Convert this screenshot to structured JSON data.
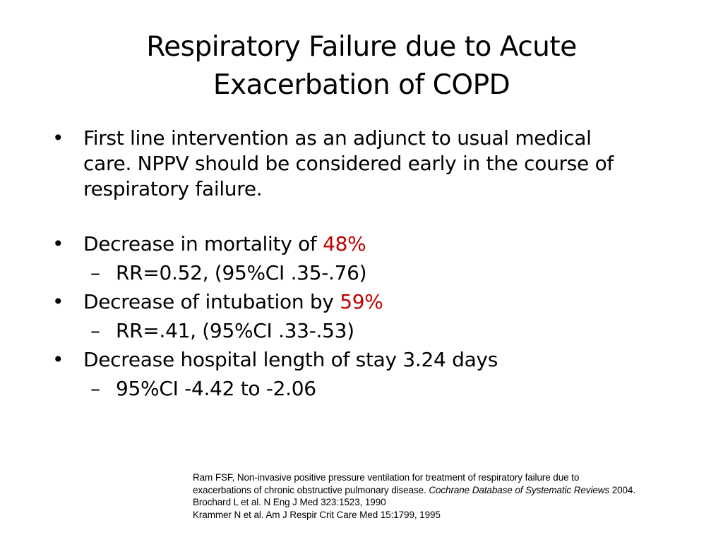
{
  "title": {
    "line1": "Respiratory Failure due to Acute",
    "line2": "Exacerbation of COPD"
  },
  "bullet_symbol": "•",
  "dash_symbol": "–",
  "bullets": [
    {
      "lines": [
        "First line intervention as an adjunct to usual medical",
        "care.  NPPV should be considered early in the course of",
        "respiratory failure."
      ]
    },
    {
      "text": "Decrease in mortality of ",
      "highlight": "48%",
      "sub": "RR=0.52, (95%CI .35-.76)"
    },
    {
      "text": "Decrease of intubation by ",
      "highlight": "59%",
      "sub": "RR=.41, (95%CI .33-.53)"
    },
    {
      "text": "Decrease hospital length of stay 3.24 days",
      "sub": "95%CI -4.42 to -2.06"
    }
  ],
  "references": {
    "line1": "Ram FSF, Non-invasive positive pressure ventilation for treatment of respiratory failure due to",
    "line2_pre": "exacerbations of chronic obstructive pulmonary disease. ",
    "line2_journal": "Cochrane Database of Systematic Reviews",
    "line2_post": " 2004.",
    "line3": "Brochard L et al. N Eng J Med 323:1523, 1990",
    "line4": "Krammer  N et al. Am J Respir Crit Care Med  15:1799, 1995"
  },
  "colors": {
    "highlight": "#c00000",
    "text": "#000000",
    "background": "#ffffff"
  }
}
